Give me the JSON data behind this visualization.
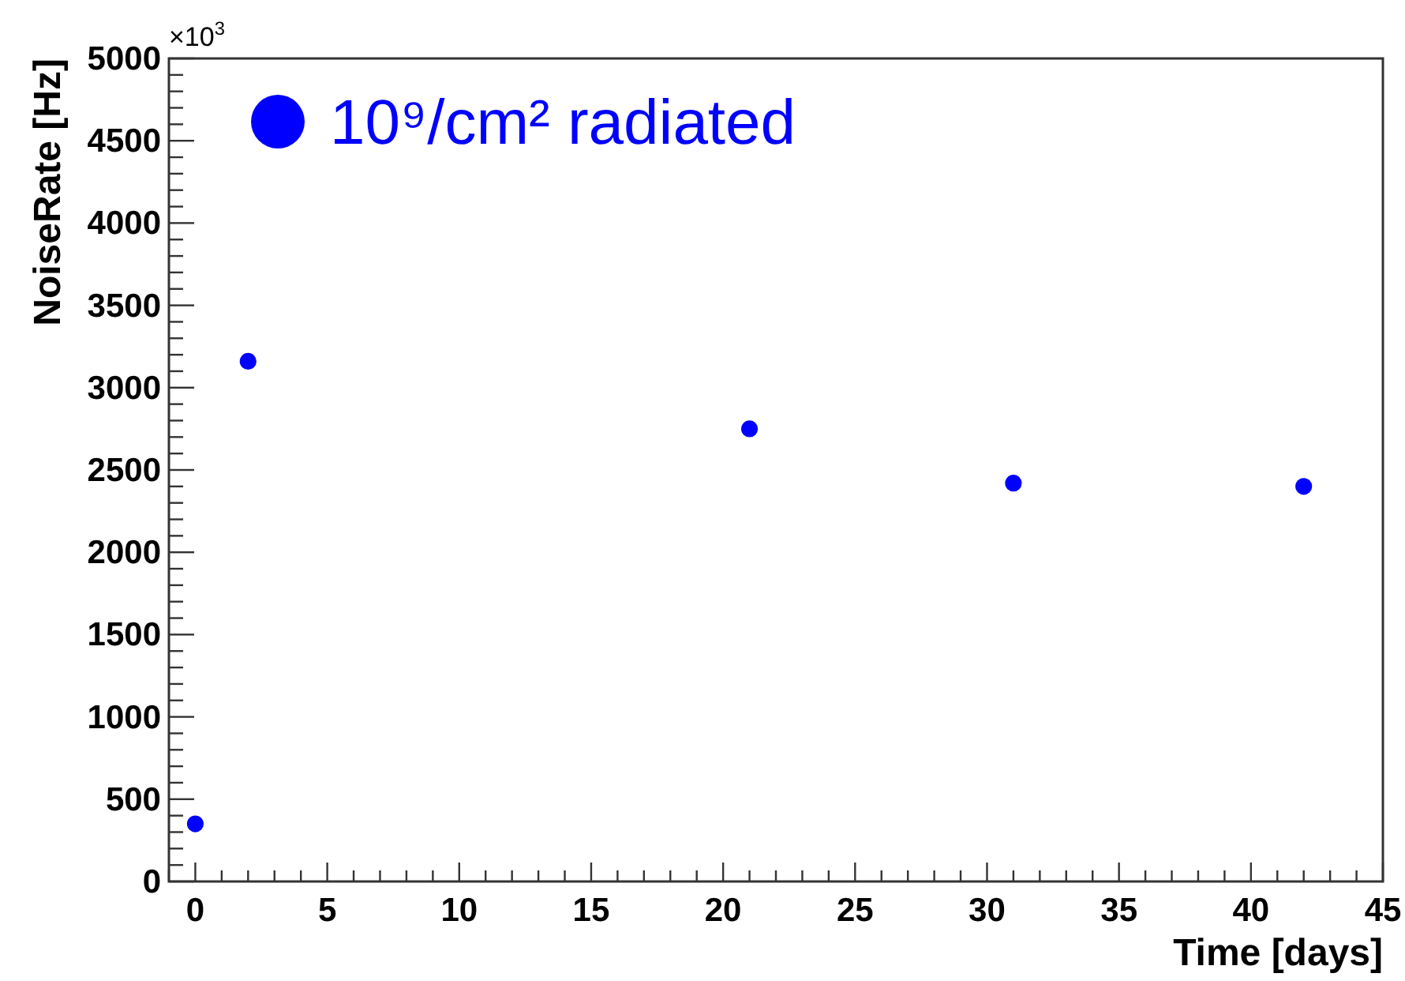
{
  "chart_data": {
    "type": "scatter",
    "xlabel": "Time [days]",
    "ylabel": "NoiseRate [Hz]",
    "annotations": [
      "×10$^{3}$"
    ],
    "x": [
      0,
      2,
      21,
      31,
      42
    ],
    "series": [
      {
        "name": "10⁹/cm² radiated",
        "color": "#0000ff",
        "values": [
          350,
          3160,
          2750,
          2420,
          2400
        ]
      }
    ],
    "xlim": [
      -1,
      45
    ],
    "xticks": [
      {
        "value": -1,
        "label": null
      },
      0,
      {
        "value": 1,
        "label": null
      },
      {
        "value": 2,
        "label": null
      },
      {
        "value": 3,
        "label": null
      },
      {
        "value": 4,
        "label": null
      },
      5,
      {
        "value": 6,
        "label": null
      },
      {
        "value": 7,
        "label": null
      },
      {
        "value": 8,
        "label": null
      },
      {
        "value": 9,
        "label": null
      },
      10,
      {
        "value": 11,
        "label": null
      },
      {
        "value": 12,
        "label": null
      },
      {
        "value": 13,
        "label": null
      },
      {
        "value": 14,
        "label": null
      },
      15,
      {
        "value": 16,
        "label": null
      },
      {
        "value": 17,
        "label": null
      },
      {
        "value": 18,
        "label": null
      },
      {
        "value": 19,
        "label": null
      },
      20,
      {
        "value": 21,
        "label": null
      },
      {
        "value": 22,
        "label": null
      },
      {
        "value": 23,
        "label": null
      },
      {
        "value": 24,
        "label": null
      },
      25,
      {
        "value": 26,
        "label": null
      },
      {
        "value": 27,
        "label": null
      },
      {
        "value": 28,
        "label": null
      },
      {
        "value": 29,
        "label": null
      },
      30,
      {
        "value": 31,
        "label": null
      },
      {
        "value": 32,
        "label": null
      },
      {
        "value": 33,
        "label": null
      },
      {
        "value": 34,
        "label": null
      },
      35,
      {
        "value": 36,
        "label": null
      },
      {
        "value": 37,
        "label": null
      },
      {
        "value": 38,
        "label": null
      },
      {
        "value": 39,
        "label": null
      },
      40,
      {
        "value": 41,
        "label": null
      },
      {
        "value": 42,
        "label": null
      },
      {
        "value": 43,
        "label": null
      },
      {
        "value": 44,
        "label": null
      },
      45
    ],
    "ylim": [
      0,
      5000
    ],
    "yticks": [
      0,
      {
        "value": 100,
        "label": null
      },
      {
        "value": 200,
        "label": null
      },
      {
        "value": 300,
        "label": null
      },
      {
        "value": 400,
        "label": null
      },
      500,
      {
        "value": 600,
        "label": null
      },
      {
        "value": 700,
        "label": null
      },
      {
        "value": 800,
        "label": null
      },
      {
        "value": 900,
        "label": null
      },
      1000,
      {
        "value": 1100,
        "label": null
      },
      {
        "value": 1200,
        "label": null
      },
      {
        "value": 1300,
        "label": null
      },
      {
        "value": 1400,
        "label": null
      },
      1500,
      {
        "value": 1600,
        "label": null
      },
      {
        "value": 1700,
        "label": null
      },
      {
        "value": 1800,
        "label": null
      },
      {
        "value": 1900,
        "label": null
      },
      2000,
      {
        "value": 2100,
        "label": null
      },
      {
        "value": 2200,
        "label": null
      },
      {
        "value": 2300,
        "label": null
      },
      {
        "value": 2400,
        "label": null
      },
      2500,
      {
        "value": 2600,
        "label": null
      },
      {
        "value": 2700,
        "label": null
      },
      {
        "value": 2800,
        "label": null
      },
      {
        "value": 2900,
        "label": null
      },
      3000,
      {
        "value": 3100,
        "label": null
      },
      {
        "value": 3200,
        "label": null
      },
      {
        "value": 3300,
        "label": null
      },
      {
        "value": 3400,
        "label": null
      },
      3500,
      {
        "value": 3600,
        "label": null
      },
      {
        "value": 3700,
        "label": null
      },
      {
        "value": 3800,
        "label": null
      },
      {
        "value": 3900,
        "label": null
      },
      4000,
      {
        "value": 4100,
        "label": null
      },
      {
        "value": 4200,
        "label": null
      },
      {
        "value": 4300,
        "label": null
      },
      {
        "value": 4400,
        "label": null
      },
      4500,
      {
        "value": 4600,
        "label": null
      },
      {
        "value": 4700,
        "label": null
      },
      {
        "value": 4800,
        "label": null
      },
      {
        "value": 4900,
        "label": null
      },
      5000
    ],
    "grid": false,
    "legend": "top left",
    "marker": "circle"
  }
}
